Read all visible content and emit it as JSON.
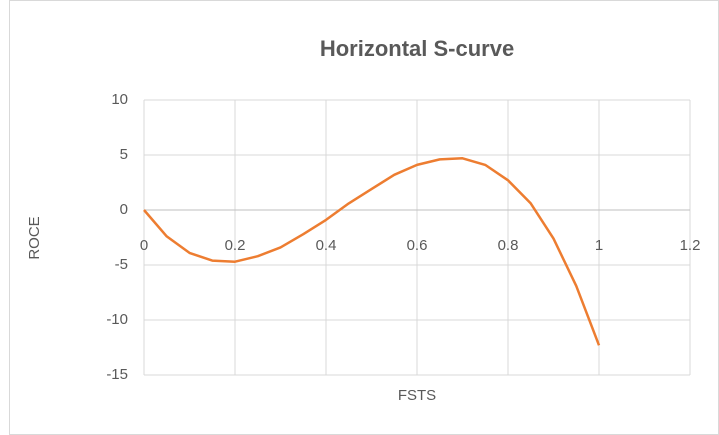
{
  "chart_data": {
    "type": "line",
    "title": "Horizontal S-curve",
    "x_label": "FSTS",
    "y_label": "ROCE",
    "x": [
      0,
      0.05,
      0.1,
      0.15,
      0.2,
      0.25,
      0.3,
      0.35,
      0.4,
      0.45,
      0.5,
      0.55,
      0.6,
      0.65,
      0.7,
      0.75,
      0.8,
      0.85,
      0.9,
      0.95,
      1
    ],
    "series": [
      {
        "name": "ROCE",
        "color": "#ED7D31",
        "values": [
          0,
          -2.4,
          -3.9,
          -4.6,
          -4.7,
          -4.2,
          -3.4,
          -2.2,
          -0.9,
          0.6,
          1.9,
          3.2,
          4.1,
          4.6,
          4.7,
          4.1,
          2.7,
          0.6,
          -2.6,
          -6.9,
          -12.3
        ]
      }
    ],
    "xlim": [
      0,
      1.2
    ],
    "xticks": [
      0,
      0.2,
      0.4,
      0.6,
      0.8,
      1,
      1.2
    ],
    "ylim": [
      -15,
      10
    ],
    "yticks": [
      -15,
      -10,
      -5,
      0,
      5,
      10
    ],
    "grid": true
  }
}
